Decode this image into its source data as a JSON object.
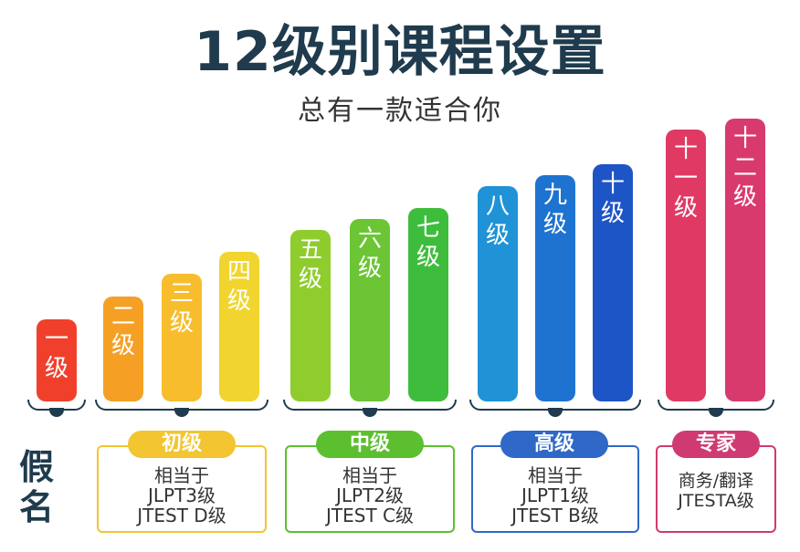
{
  "title": "12级别课程设置",
  "subtitle": "总有一款适合你",
  "side_label": [
    "假",
    "名"
  ],
  "bars": [
    {
      "label": [
        "一",
        "级"
      ],
      "color": "#f0402c"
    },
    {
      "label": [
        "二",
        "级"
      ],
      "color": "#f5a025"
    },
    {
      "label": [
        "三",
        "级"
      ],
      "color": "#f7bd2c"
    },
    {
      "label": [
        "四",
        "级"
      ],
      "color": "#f1d52e"
    },
    {
      "label": [
        "五",
        "级"
      ],
      "color": "#8fcc2d"
    },
    {
      "label": [
        "六",
        "级"
      ],
      "color": "#6cc534"
    },
    {
      "label": [
        "七",
        "级"
      ],
      "color": "#3ebd3c"
    },
    {
      "label": [
        "八",
        "级"
      ],
      "color": "#1f93d6"
    },
    {
      "label": [
        "九",
        "级"
      ],
      "color": "#1e73d0"
    },
    {
      "label": [
        "十",
        "级"
      ],
      "color": "#1e55c6"
    },
    {
      "label": [
        "十",
        "一",
        "级"
      ],
      "color": "#e03a64"
    },
    {
      "label": [
        "十",
        "二",
        "级"
      ],
      "color": "#d93a6e"
    }
  ],
  "groups": [
    {
      "name": "初级",
      "color": "#f2c531",
      "lines": [
        "相当于",
        "JLPT3级",
        "JTEST D级"
      ]
    },
    {
      "name": "中级",
      "color": "#5cbf2f",
      "lines": [
        "相当于",
        "JLPT2级",
        "JTEST C级"
      ]
    },
    {
      "name": "高级",
      "color": "#2f68c6",
      "lines": [
        "相当于",
        "JLPT1级",
        "JTEST B级"
      ]
    },
    {
      "name": "专家",
      "color": "#cf3a72",
      "lines": [
        "商务/翻译",
        "JTESTA级"
      ]
    }
  ]
}
